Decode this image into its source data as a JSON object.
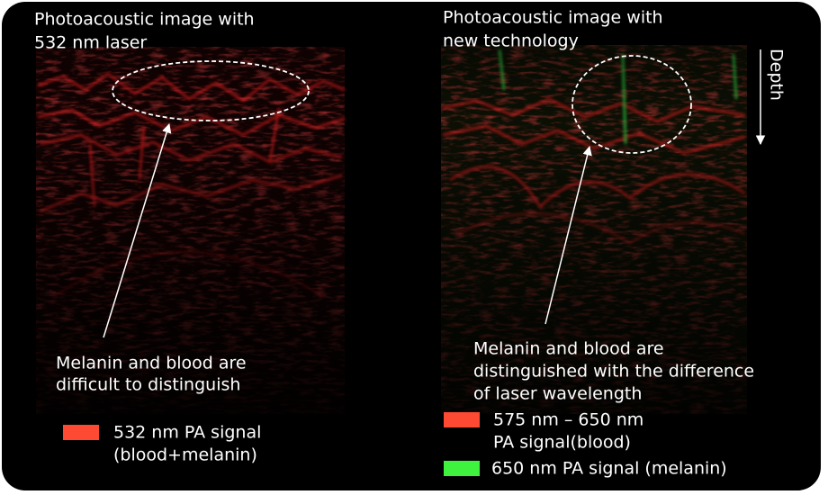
{
  "left_panel": {
    "title": [
      "Photoacoustic image with",
      "532 nm laser"
    ],
    "annotation": [
      "Melanin and blood are",
      "difficult to distinguish"
    ],
    "legend": [
      {
        "label": [
          "532 nm PA signal",
          "(blood+melanin)"
        ]
      }
    ]
  },
  "right_panel": {
    "title": [
      "Photoacoustic image with",
      "new technology"
    ],
    "axis_label": "Depth",
    "annotation": [
      "Melanin and blood are",
      "distinguished with the difference",
      "of laser wavelength"
    ],
    "legend": [
      {
        "label": [
          "575 nm – 650 nm",
          "PA signal(blood)"
        ]
      },
      {
        "label": [
          "650 nm PA signal (melanin)"
        ]
      }
    ]
  }
}
